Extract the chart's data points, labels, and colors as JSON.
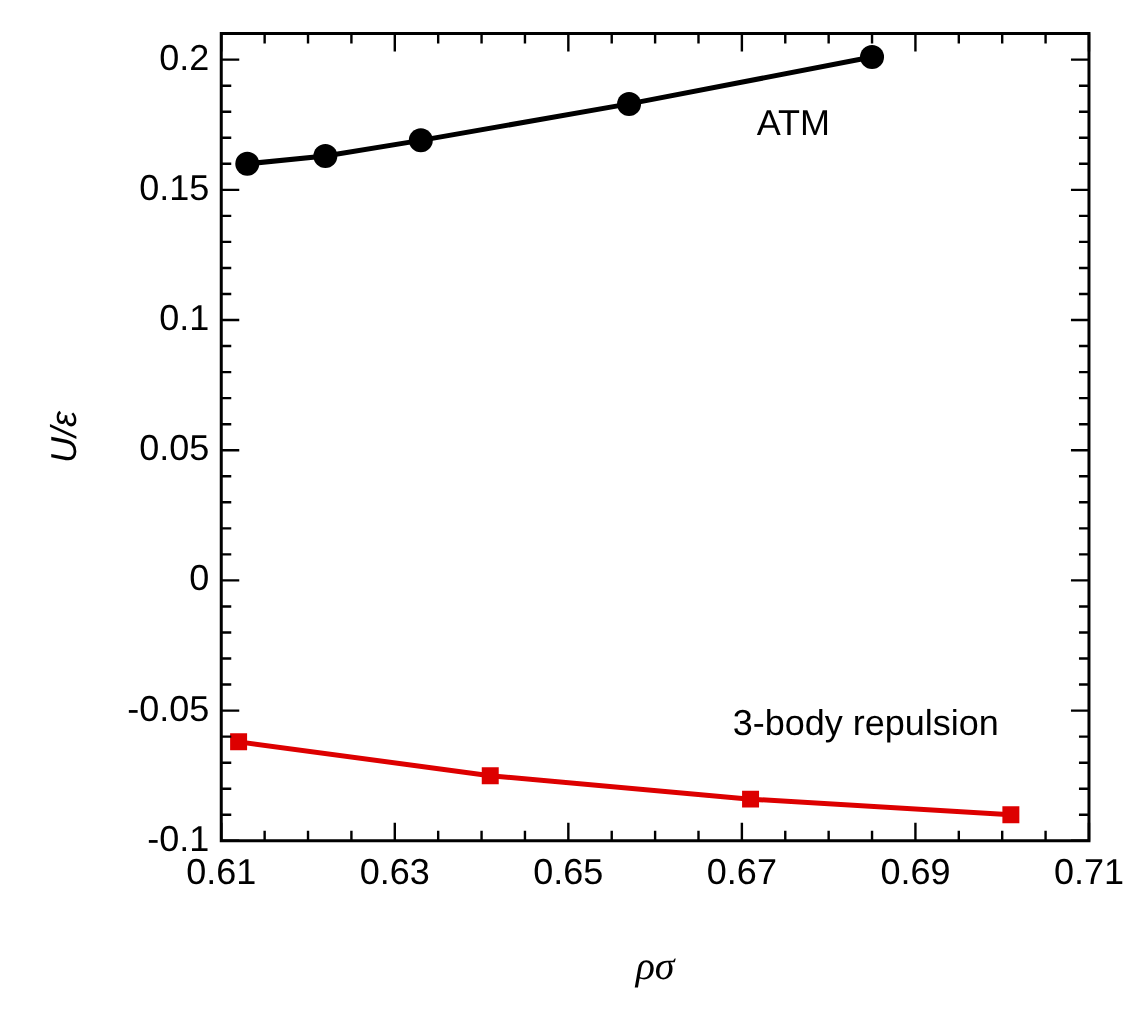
{
  "chart_data": {
    "type": "line",
    "xlabel": "ρσ",
    "ylabel": "U/ε",
    "x": [
      0.613,
      0.622,
      0.633,
      0.657,
      0.685
    ],
    "series": [
      {
        "color": "#000000",
        "marker": "circle",
        "values": [
          0.16,
          0.163,
          0.169,
          0.183,
          0.201
        ]
      },
      {
        "color": "#dd0000",
        "marker": "square",
        "x": [
          0.612,
          0.641,
          0.671,
          0.701
        ],
        "values": [
          -0.062,
          -0.075,
          -0.084,
          -0.09
        ]
      }
    ],
    "xlim": [
      0.61,
      0.71
    ],
    "xticks": [
      0.61,
      {
        "value": 0.615,
        "label": null
      },
      {
        "value": 0.62,
        "label": null
      },
      {
        "value": 0.625,
        "label": null
      },
      0.63,
      {
        "value": 0.635,
        "label": null
      },
      {
        "value": 0.64,
        "label": null
      },
      {
        "value": 0.645,
        "label": null
      },
      0.65,
      {
        "value": 0.655,
        "label": null
      },
      {
        "value": 0.66,
        "label": null
      },
      {
        "value": 0.665,
        "label": null
      },
      0.67,
      {
        "value": 0.675,
        "label": null
      },
      {
        "value": 0.68,
        "label": null
      },
      {
        "value": 0.685,
        "label": null
      },
      0.69,
      {
        "value": 0.695,
        "label": null
      },
      {
        "value": 0.7,
        "label": null
      },
      {
        "value": 0.705,
        "label": null
      },
      0.71
    ],
    "ylim": [
      -0.1,
      0.21
    ],
    "yticks": [
      -0.1,
      {
        "value": -0.09,
        "label": null
      },
      {
        "value": -0.08,
        "label": null
      },
      {
        "value": -0.07,
        "label": null
      },
      {
        "value": -0.06,
        "label": null
      },
      -0.05,
      {
        "value": -0.04,
        "label": null
      },
      {
        "value": -0.03,
        "label": null
      },
      {
        "value": -0.02,
        "label": null
      },
      {
        "value": -0.01,
        "label": null
      },
      0,
      {
        "value": 0.01,
        "label": null
      },
      {
        "value": 0.02,
        "label": null
      },
      {
        "value": 0.03,
        "label": null
      },
      {
        "value": 0.04,
        "label": null
      },
      0.05,
      {
        "value": 0.06,
        "label": null
      },
      {
        "value": 0.07,
        "label": null
      },
      {
        "value": 0.08,
        "label": null
      },
      {
        "value": 0.09,
        "label": null
      },
      0.1,
      {
        "value": 0.11,
        "label": null
      },
      {
        "value": 0.12,
        "label": null
      },
      {
        "value": 0.13,
        "label": null
      },
      {
        "value": 0.14,
        "label": null
      },
      0.15,
      {
        "value": 0.16,
        "label": null
      },
      {
        "value": 0.17,
        "label": null
      },
      {
        "value": 0.18,
        "label": null
      },
      {
        "value": 0.19,
        "label": null
      },
      0.2
    ],
    "annotations": [
      "ATM",
      "3-body repulsion"
    ],
    "grid": false,
    "legend": false
  }
}
